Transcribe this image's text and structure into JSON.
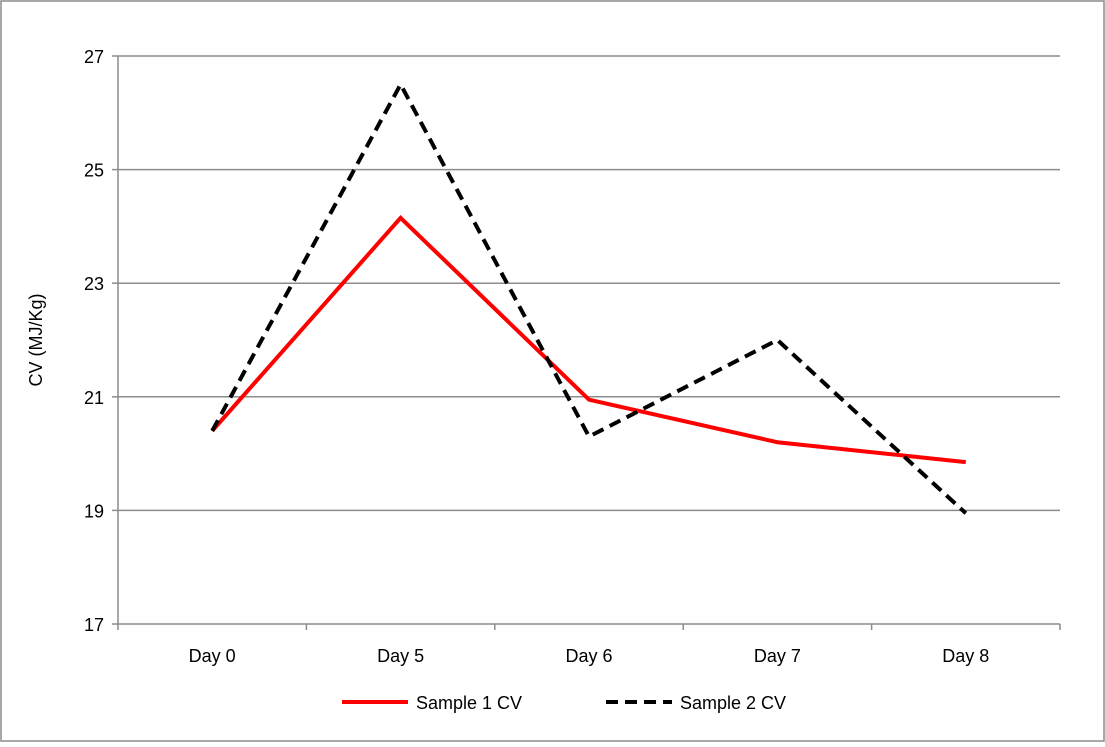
{
  "chart_data": {
    "type": "line",
    "categories": [
      "Day 0",
      "Day 5",
      "Day 6",
      "Day 7",
      "Day 8"
    ],
    "ylabel": "CV (MJ/Kg)",
    "ylim": [
      17,
      27
    ],
    "yticks": [
      17,
      19,
      21,
      23,
      25,
      27
    ],
    "grid": true,
    "legend_position": "bottom",
    "series": [
      {
        "name": "Sample 1 CV",
        "values": [
          20.4,
          24.15,
          20.95,
          20.2,
          19.85
        ],
        "color": "#ff0000",
        "style": "solid"
      },
      {
        "name": "Sample 2 CV",
        "values": [
          20.4,
          26.5,
          20.3,
          22.0,
          18.95
        ],
        "color": "#000000",
        "style": "dashed"
      }
    ]
  }
}
